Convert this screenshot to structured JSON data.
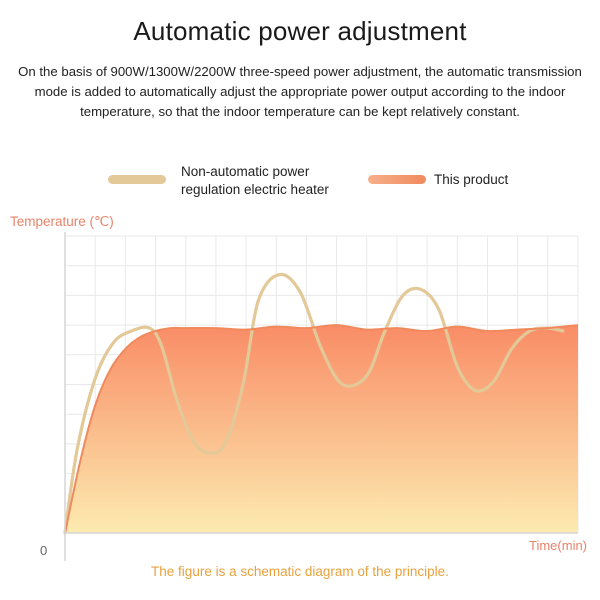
{
  "header": {
    "title": "Automatic power adjustment",
    "description": "On the basis of 900W/1300W/2200W three-speed power adjustment, the automatic transmission mode is added to automatically adjust the appropriate power output according to the indoor temperature, so that the indoor temperature can be kept relatively constant."
  },
  "footer": {
    "caption": "The figure is a schematic diagram of the principle."
  },
  "colors": {
    "series_non_automatic": "#e3c898",
    "series_this_product": "#f08a5d",
    "fill_top": "#f98c66",
    "fill_bottom": "#fcebb0",
    "axis_label": "#e8836a",
    "caption": "#e8a13c",
    "grid": "#e9e9e9"
  },
  "chart_data": {
    "type": "line",
    "xlabel": "Time(min)",
    "ylabel": "Temperature (℃)",
    "origin_label": "0",
    "xlim": [
      0,
      17
    ],
    "ylim": [
      0,
      10
    ],
    "legend_position": "top",
    "grid": true,
    "series": [
      {
        "name": "Non-automatic power\nregulation electric heater",
        "x": [
          0,
          0.4,
          1,
          1.6,
          2.2,
          2.8,
          3.2,
          3.7,
          4.2,
          4.7,
          5.3,
          5.9,
          6.4,
          7.1,
          7.8,
          8.5,
          9.2,
          10,
          10.6,
          11.2,
          11.8,
          12.4,
          13,
          13.6,
          14.2,
          14.8,
          15.4,
          16,
          16.5
        ],
        "y": [
          0,
          2.8,
          5.2,
          6.4,
          6.8,
          6.9,
          6.3,
          4.5,
          3.2,
          2.7,
          3.0,
          5.0,
          7.8,
          8.7,
          8.1,
          6.2,
          5.0,
          5.3,
          6.8,
          8.0,
          8.2,
          7.5,
          5.6,
          4.8,
          5.1,
          6.2,
          6.8,
          6.9,
          6.8
        ]
      },
      {
        "name": "This product",
        "x": [
          0,
          0.5,
          1,
          1.5,
          2,
          2.5,
          3,
          3.5,
          4,
          5,
          6,
          7,
          8,
          9,
          10,
          11,
          12,
          13,
          14,
          15,
          16,
          17
        ],
        "y": [
          0,
          2.4,
          4.3,
          5.5,
          6.2,
          6.6,
          6.8,
          6.9,
          6.9,
          6.9,
          6.85,
          6.95,
          6.9,
          7.0,
          6.85,
          6.9,
          6.8,
          6.95,
          6.8,
          6.85,
          6.9,
          7.0
        ]
      }
    ]
  }
}
